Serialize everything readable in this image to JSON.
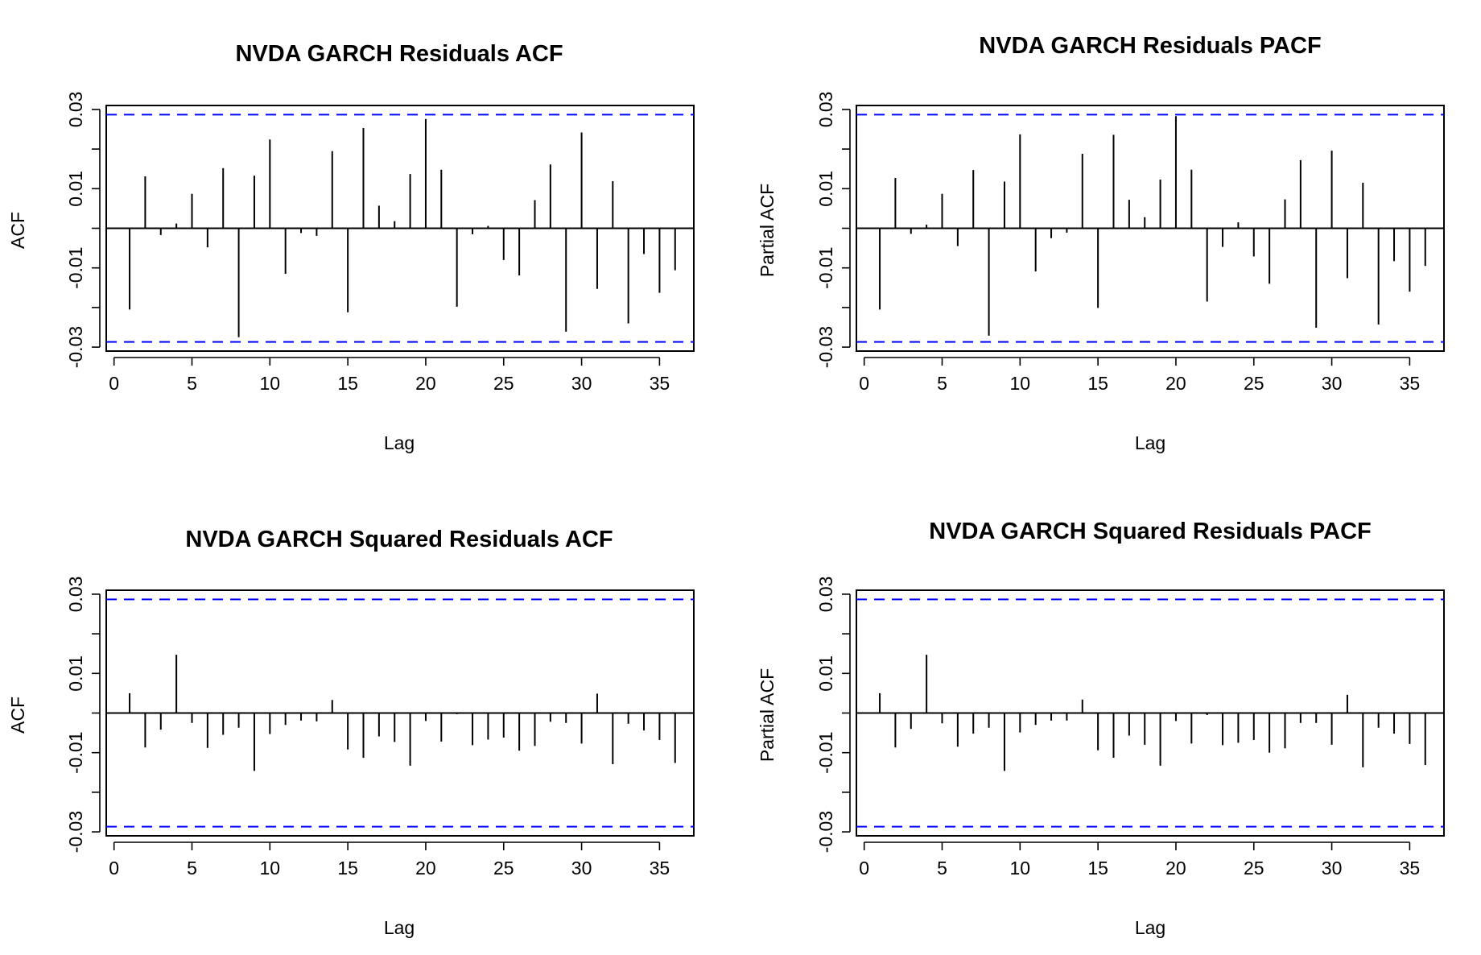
{
  "chart_data": [
    {
      "type": "bar",
      "title": "NVDA GARCH Residuals ACF",
      "xlabel": "Lag",
      "ylabel": "ACF",
      "xlim": [
        -0.5,
        37.2
      ],
      "ylim": [
        -0.031,
        0.031
      ],
      "xticks": [
        "0",
        "5",
        "10",
        "15",
        "20",
        "25",
        "30",
        "35"
      ],
      "yticks": [
        "-0.03",
        "-0.01",
        "0.01",
        "0.03"
      ],
      "ci_bounds": [
        -0.0287,
        0.0287
      ],
      "ci_color": "#0000ff",
      "x": [
        1,
        2,
        3,
        4,
        5,
        6,
        7,
        8,
        9,
        10,
        11,
        12,
        13,
        14,
        15,
        16,
        17,
        18,
        19,
        20,
        21,
        22,
        23,
        24,
        25,
        26,
        27,
        28,
        29,
        30,
        31,
        32,
        33,
        34,
        35,
        36
      ],
      "values": [
        -0.0205,
        0.0131,
        -0.0017,
        0.0012,
        0.0087,
        -0.0048,
        0.0152,
        -0.0275,
        0.0133,
        0.0224,
        -0.0115,
        -0.0012,
        -0.0019,
        0.0195,
        -0.0212,
        0.0253,
        0.0057,
        0.0018,
        0.0137,
        0.0276,
        0.0148,
        -0.0198,
        -0.0015,
        0.0006,
        -0.008,
        -0.0119,
        0.0071,
        0.0161,
        -0.0261,
        0.0242,
        -0.0153,
        0.0119,
        -0.024,
        -0.0065,
        -0.0163,
        -0.0106
      ]
    },
    {
      "type": "bar",
      "title": "NVDA GARCH Residuals PACF",
      "xlabel": "Lag",
      "ylabel": "Partial ACF",
      "xlim": [
        -0.5,
        37.2
      ],
      "ylim": [
        -0.031,
        0.031
      ],
      "xticks": [
        "0",
        "5",
        "10",
        "15",
        "20",
        "25",
        "30",
        "35"
      ],
      "yticks": [
        "-0.03",
        "-0.01",
        "0.01",
        "0.03"
      ],
      "ci_bounds": [
        -0.0287,
        0.0287
      ],
      "ci_color": "#0000ff",
      "x": [
        1,
        2,
        3,
        4,
        5,
        6,
        7,
        8,
        9,
        10,
        11,
        12,
        13,
        14,
        15,
        16,
        17,
        18,
        19,
        20,
        21,
        22,
        23,
        24,
        25,
        26,
        27,
        28,
        29,
        30,
        31,
        32,
        33,
        34,
        35,
        36
      ],
      "values": [
        -0.0205,
        0.0127,
        -0.0014,
        0.0009,
        0.0087,
        -0.0045,
        0.0147,
        -0.0271,
        0.0118,
        0.0237,
        -0.0109,
        -0.0025,
        -0.0011,
        0.0188,
        -0.0201,
        0.0236,
        0.0072,
        0.0028,
        0.0123,
        0.0283,
        0.0148,
        -0.0185,
        -0.0047,
        0.0015,
        -0.0071,
        -0.014,
        0.0073,
        0.0172,
        -0.0251,
        0.0196,
        -0.0126,
        0.0115,
        -0.0243,
        -0.0083,
        -0.016,
        -0.0095
      ]
    },
    {
      "type": "bar",
      "title": "NVDA GARCH Squared Residuals ACF",
      "xlabel": "Lag",
      "ylabel": "ACF",
      "xlim": [
        -0.5,
        37.2
      ],
      "ylim": [
        -0.031,
        0.031
      ],
      "xticks": [
        "0",
        "5",
        "10",
        "15",
        "20",
        "25",
        "30",
        "35"
      ],
      "yticks": [
        "-0.03",
        "-0.01",
        "0.01",
        "0.03"
      ],
      "ci_bounds": [
        -0.0287,
        0.0287
      ],
      "ci_color": "#0000ff",
      "x": [
        1,
        2,
        3,
        4,
        5,
        6,
        7,
        8,
        9,
        10,
        11,
        12,
        13,
        14,
        15,
        16,
        17,
        18,
        19,
        20,
        21,
        22,
        23,
        24,
        25,
        26,
        27,
        28,
        29,
        30,
        31,
        32,
        33,
        34,
        35,
        36
      ],
      "values": [
        0.005,
        -0.0087,
        -0.0042,
        0.0147,
        -0.0025,
        -0.0088,
        -0.0055,
        -0.0037,
        -0.0146,
        -0.0053,
        -0.003,
        -0.0019,
        -0.0021,
        0.0033,
        -0.0092,
        -0.0113,
        -0.0059,
        -0.0073,
        -0.0133,
        -0.002,
        -0.0072,
        -0.0003,
        -0.0081,
        -0.0067,
        -0.0062,
        -0.0095,
        -0.0083,
        -0.0022,
        -0.0025,
        -0.0077,
        0.0049,
        -0.0129,
        -0.0027,
        -0.0044,
        -0.0068,
        -0.0126
      ]
    },
    {
      "type": "bar",
      "title": "NVDA GARCH Squared Residuals PACF",
      "xlabel": "Lag",
      "ylabel": "Partial ACF",
      "xlim": [
        -0.5,
        37.2
      ],
      "ylim": [
        -0.031,
        0.031
      ],
      "xticks": [
        "0",
        "5",
        "10",
        "15",
        "20",
        "25",
        "30",
        "35"
      ],
      "yticks": [
        "-0.03",
        "-0.01",
        "0.01",
        "0.03"
      ],
      "ci_bounds": [
        -0.0287,
        0.0287
      ],
      "ci_color": "#0000ff",
      "x": [
        1,
        2,
        3,
        4,
        5,
        6,
        7,
        8,
        9,
        10,
        11,
        12,
        13,
        14,
        15,
        16,
        17,
        18,
        19,
        20,
        21,
        22,
        23,
        24,
        25,
        26,
        27,
        28,
        29,
        30,
        31,
        32,
        33,
        34,
        35,
        36
      ],
      "values": [
        0.005,
        -0.0087,
        -0.004,
        0.0147,
        -0.0026,
        -0.0085,
        -0.0052,
        -0.0037,
        -0.0146,
        -0.0049,
        -0.003,
        -0.0019,
        -0.0019,
        0.0034,
        -0.0094,
        -0.0113,
        -0.0057,
        -0.008,
        -0.0133,
        -0.002,
        -0.0077,
        -0.0005,
        -0.0081,
        -0.0075,
        -0.0068,
        -0.01,
        -0.0089,
        -0.0025,
        -0.0025,
        -0.008,
        0.0046,
        -0.0137,
        -0.0037,
        -0.0052,
        -0.0078,
        -0.0131
      ]
    }
  ]
}
